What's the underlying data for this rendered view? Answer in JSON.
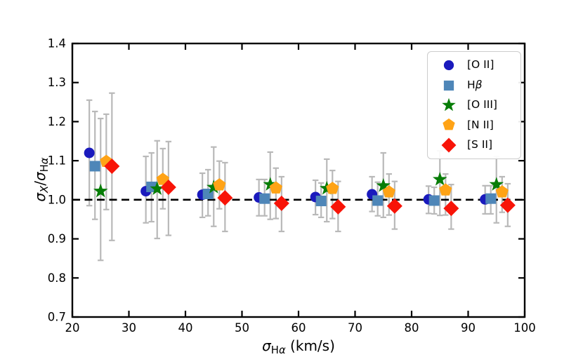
{
  "figure": {
    "background": "#ffffff"
  },
  "styles": {
    "axis_color": "#000000",
    "error_bar_color": "#b9b9b9",
    "reference_line_color": "#000000"
  },
  "chart_data": {
    "type": "scatter",
    "title": "",
    "xlabel": "σ_Hα (km/s)",
    "ylabel": "σ_X/σ_Hα",
    "xlabel_parts": {
      "sigma": "σ",
      "sub_roman": "H",
      "sub_greek": "α",
      "units": " (km/s)"
    },
    "ylabel_parts": {
      "sigma_num": "σ",
      "sub_num": "X",
      "slash": "/",
      "sigma_den": "σ",
      "sub_den_roman": "H",
      "sub_den_greek": "α"
    },
    "xlim": [
      20,
      100
    ],
    "ylim": [
      0.7,
      1.4
    ],
    "x_ticks": [
      20,
      30,
      40,
      50,
      60,
      70,
      80,
      90,
      100
    ],
    "y_ticks": [
      0.7,
      0.8,
      0.9,
      1.0,
      1.1,
      1.2,
      1.3,
      1.4
    ],
    "grid": false,
    "reference_line_y": 1.0,
    "legend_position": "upper right",
    "point_format": [
      "x",
      "y",
      "err_lo",
      "err_hi"
    ],
    "series": [
      {
        "name": "[O II]",
        "slug": "o-ii",
        "marker": "circle",
        "color": "#1a1abd",
        "label_parts": [
          {
            "t": "[O II]",
            "i": false
          }
        ],
        "points": [
          [
            23,
            1.12,
            0.985,
            1.255
          ],
          [
            33,
            1.022,
            0.941,
            1.111
          ],
          [
            43,
            1.013,
            0.955,
            1.068
          ],
          [
            53,
            1.006,
            0.959,
            1.052
          ],
          [
            63,
            1.007,
            0.962,
            1.05
          ],
          [
            73,
            1.014,
            0.97,
            1.059
          ],
          [
            83,
            1.001,
            0.965,
            1.035
          ],
          [
            93,
            1.001,
            0.964,
            1.036
          ]
        ]
      },
      {
        "name": "Hβ",
        "slug": "h-beta",
        "marker": "square",
        "color": "#4e86b8",
        "label_parts": [
          {
            "t": "H",
            "i": false
          },
          {
            "t": "β",
            "i": true
          }
        ],
        "points": [
          [
            24,
            1.086,
            0.95,
            1.226
          ],
          [
            34,
            1.033,
            0.944,
            1.12
          ],
          [
            44,
            1.015,
            0.959,
            1.077
          ],
          [
            54,
            1.003,
            0.959,
            1.052
          ],
          [
            64,
            0.997,
            0.955,
            1.043
          ],
          [
            74,
            0.998,
            0.959,
            1.045
          ],
          [
            84,
            0.998,
            0.964,
            1.032
          ],
          [
            94,
            1.003,
            0.964,
            1.036
          ]
        ]
      },
      {
        "name": "[O III]",
        "slug": "o-iii",
        "marker": "star",
        "color": "#077d07",
        "label_parts": [
          {
            "t": "[O III]",
            "i": false
          }
        ],
        "points": [
          [
            25,
            1.022,
            0.845,
            1.208
          ],
          [
            35,
            1.028,
            0.901,
            1.151
          ],
          [
            45,
            1.032,
            0.932,
            1.135
          ],
          [
            55,
            1.039,
            0.95,
            1.122
          ],
          [
            65,
            1.029,
            0.944,
            1.104
          ],
          [
            75,
            1.036,
            0.955,
            1.12
          ],
          [
            85,
            1.052,
            0.96,
            1.125
          ],
          [
            95,
            1.039,
            0.941,
            1.11
          ]
        ]
      },
      {
        "name": "[N II]",
        "slug": "n-ii",
        "marker": "pentagon",
        "color": "#ffa316",
        "label_parts": [
          {
            "t": "[N II]",
            "i": false
          }
        ],
        "points": [
          [
            26,
            1.098,
            0.975,
            1.219
          ],
          [
            36,
            1.052,
            0.977,
            1.131
          ],
          [
            46,
            1.038,
            0.977,
            1.099
          ],
          [
            56,
            1.03,
            0.952,
            1.081
          ],
          [
            66,
            1.029,
            0.952,
            1.075
          ],
          [
            76,
            1.02,
            0.961,
            1.066
          ],
          [
            86,
            1.025,
            0.961,
            1.066
          ],
          [
            96,
            1.02,
            0.968,
            1.059
          ]
        ]
      },
      {
        "name": "[S II]",
        "slug": "s-ii",
        "marker": "diamond",
        "color": "#f81408",
        "label_parts": [
          {
            "t": "[S II]",
            "i": false
          }
        ],
        "points": [
          [
            27,
            1.086,
            0.896,
            1.273
          ],
          [
            37,
            1.032,
            0.909,
            1.149
          ],
          [
            47,
            1.005,
            0.919,
            1.095
          ],
          [
            57,
            0.991,
            0.919,
            1.059
          ],
          [
            67,
            0.982,
            0.919,
            1.047
          ],
          [
            77,
            0.984,
            0.925,
            1.047
          ],
          [
            87,
            0.978,
            0.925,
            1.039
          ],
          [
            97,
            0.986,
            0.932,
            1.041
          ]
        ]
      }
    ]
  }
}
